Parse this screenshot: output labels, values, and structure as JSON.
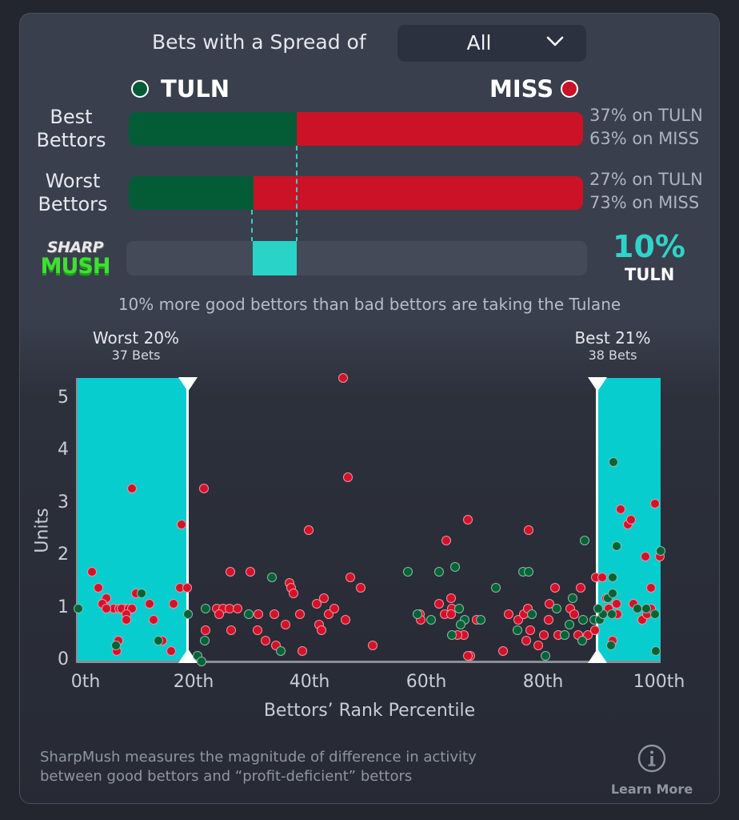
{
  "filter": {
    "label": "Bets with a Spread of",
    "selected": "All"
  },
  "teams": {
    "left": {
      "abbr": "TULN",
      "color": "#045c37"
    },
    "right": {
      "abbr": "MISS",
      "color": "#cc1226"
    }
  },
  "rows": [
    {
      "label_line1": "Best",
      "label_line2": "Bettors",
      "left_pct": 37,
      "right_pct": 63,
      "text1": "37% on TULN",
      "text2": "63% on MISS"
    },
    {
      "label_line1": "Worst",
      "label_line2": "Bettors",
      "left_pct": 27,
      "right_pct": 73,
      "text1": "27% on TULN",
      "text2": "73% on MISS"
    }
  ],
  "sharpmush": {
    "logo_top": "SHARP",
    "logo_bottom": "MUSH",
    "difference": "10%",
    "team": "TULN",
    "accent": "#29d3c8",
    "summary": "10% more good bettors than bad bettors are taking the Tulane"
  },
  "ranges": {
    "worst": {
      "title": "Worst 20%",
      "bets": "37 Bets"
    },
    "best": {
      "title": "Best 21%",
      "bets": "38 Bets"
    }
  },
  "footer": {
    "line1": "SharpMush measures the magnitude of difference in activity",
    "line2": "between good bettors and “profit-deficient” bettors",
    "learn_more": "Learn More"
  },
  "chart_data": {
    "type": "scatter",
    "title": "",
    "xlabel": "Bettors’ Rank Percentile",
    "ylabel": "Units",
    "xlim": [
      0,
      100
    ],
    "ylim": [
      0,
      5.4
    ],
    "x_ticks": [
      "0th",
      "20th",
      "40th",
      "60th",
      "80th",
      "100th"
    ],
    "y_ticks": [
      "0",
      "1",
      "2",
      "3",
      "4",
      "5"
    ],
    "grid": false,
    "legend": [
      {
        "name": "TULN",
        "color": "#056337"
      },
      {
        "name": "MISS",
        "color": "#d5112a"
      }
    ],
    "shaded_regions": [
      {
        "name": "Worst 20%",
        "x_from": 0,
        "x_to": 18.8,
        "color": "#08cdcf"
      },
      {
        "name": "Best 21%",
        "x_from": 89.3,
        "x_to": 100,
        "color": "#08cdcf"
      }
    ],
    "series": [
      {
        "name": "MISS",
        "color": "#d5112a",
        "points": [
          [
            9.3,
            3.3
          ],
          [
            21.7,
            3.3
          ],
          [
            17.9,
            2.6
          ],
          [
            2.5,
            1.7
          ],
          [
            3.6,
            1.4
          ],
          [
            17.5,
            1.4
          ],
          [
            18.8,
            1.4
          ],
          [
            5.0,
            1.2
          ],
          [
            10.0,
            1.3
          ],
          [
            4.2,
            1.1
          ],
          [
            6.2,
            1.0
          ],
          [
            4.9,
            1.0
          ],
          [
            8.2,
            1.0
          ],
          [
            7.1,
            1.0
          ],
          [
            7.6,
            1.0
          ],
          [
            8.8,
            1.0
          ],
          [
            9.3,
            1.0
          ],
          [
            8.4,
            0.9
          ],
          [
            8.4,
            0.8
          ],
          [
            12.4,
            1.1
          ],
          [
            16.5,
            1.1
          ],
          [
            13.1,
            0.8
          ],
          [
            7.0,
            0.4
          ],
          [
            14.5,
            0.4
          ],
          [
            6.7,
            0.2
          ],
          [
            16.0,
            0.2
          ],
          [
            21.9,
            0.6
          ],
          [
            23.9,
            1.0
          ],
          [
            24.9,
            1.0
          ],
          [
            26.0,
            1.0
          ],
          [
            27.5,
            1.0
          ],
          [
            24.3,
            0.9
          ],
          [
            26.2,
            1.7
          ],
          [
            29.6,
            1.7
          ],
          [
            26.3,
            0.6
          ],
          [
            31.0,
            0.9
          ],
          [
            30.9,
            0.6
          ],
          [
            33.8,
            0.9
          ],
          [
            32.2,
            0.4
          ],
          [
            34.0,
            0.3
          ],
          [
            39.6,
            2.5
          ],
          [
            35.6,
            0.7
          ],
          [
            36.4,
            1.5
          ],
          [
            36.6,
            1.4
          ],
          [
            37.0,
            1.3
          ],
          [
            38.2,
            0.9
          ],
          [
            41.0,
            1.1
          ],
          [
            42.3,
            1.2
          ],
          [
            41.4,
            0.7
          ],
          [
            41.8,
            0.6
          ],
          [
            43.1,
            0.9
          ],
          [
            38.6,
            0.2
          ],
          [
            44.0,
            1.0
          ],
          [
            45.5,
            5.4
          ],
          [
            46.3,
            3.5
          ],
          [
            46.8,
            1.6
          ],
          [
            48.5,
            1.4
          ],
          [
            45.9,
            0.8
          ],
          [
            50.6,
            0.3
          ],
          [
            58.7,
            0.9
          ],
          [
            58.8,
            0.8
          ],
          [
            62.0,
            1.1
          ],
          [
            63.0,
            0.9
          ],
          [
            63.3,
            2.3
          ],
          [
            64.1,
            1.2
          ],
          [
            64.2,
            1.0
          ],
          [
            64.0,
            0.9
          ],
          [
            66.2,
            0.5
          ],
          [
            65.2,
            0.5
          ],
          [
            66.9,
            2.7
          ],
          [
            67.3,
            0.1
          ],
          [
            68.4,
            0.8
          ],
          [
            67.0,
            0.1
          ],
          [
            73.0,
            0.2
          ],
          [
            74.0,
            0.9
          ],
          [
            75.6,
            0.8
          ],
          [
            76.6,
            0.9
          ],
          [
            77.3,
            2.5
          ],
          [
            77.2,
            1.0
          ],
          [
            76.9,
            0.4
          ],
          [
            77.6,
            0.6
          ],
          [
            79.0,
            0.3
          ],
          [
            80.0,
            0.5
          ],
          [
            80.8,
            0.8
          ],
          [
            81.0,
            1.1
          ],
          [
            81.9,
            1.4
          ],
          [
            82.5,
            0.5
          ],
          [
            84.5,
            1.0
          ],
          [
            85.2,
            0.9
          ],
          [
            86.3,
            1.4
          ],
          [
            85.9,
            0.5
          ],
          [
            87.5,
            0.5
          ],
          [
            88.9,
            1.6
          ],
          [
            90.0,
            1.6
          ],
          [
            90.7,
            1.2
          ],
          [
            88.8,
            0.6
          ],
          [
            91.8,
            0.4
          ],
          [
            91.1,
            1.0
          ],
          [
            92.4,
            1.1
          ],
          [
            92.6,
            0.9
          ],
          [
            93.2,
            2.9
          ],
          [
            94.4,
            2.6
          ],
          [
            94.9,
            2.7
          ],
          [
            95.4,
            1.1
          ],
          [
            96.8,
            0.8
          ],
          [
            97.4,
            2.0
          ],
          [
            97.7,
            0.9
          ],
          [
            98.3,
            1.4
          ],
          [
            98.3,
            1.0
          ],
          [
            99.0,
            3.0
          ],
          [
            99.8,
            2.0
          ]
        ]
      },
      {
        "name": "TULN",
        "color": "#056337",
        "points": [
          [
            0.2,
            1.0
          ],
          [
            11.0,
            1.3
          ],
          [
            6.6,
            0.3
          ],
          [
            13.9,
            0.4
          ],
          [
            18.9,
            0.9
          ],
          [
            20.6,
            0.1
          ],
          [
            21.3,
            0.0
          ],
          [
            21.9,
            1.0
          ],
          [
            21.8,
            0.4
          ],
          [
            29.3,
            0.9
          ],
          [
            33.3,
            1.6
          ],
          [
            34.8,
            0.2
          ],
          [
            58.3,
            0.9
          ],
          [
            60.6,
            0.8
          ],
          [
            56.6,
            1.7
          ],
          [
            62.0,
            1.7
          ],
          [
            64.7,
            1.8
          ],
          [
            65.4,
            1.0
          ],
          [
            66.4,
            0.8
          ],
          [
            65.7,
            0.7
          ],
          [
            64.2,
            0.5
          ],
          [
            69.2,
            0.8
          ],
          [
            71.7,
            1.4
          ],
          [
            75.5,
            0.6
          ],
          [
            76.4,
            1.7
          ],
          [
            77.4,
            1.7
          ],
          [
            77.9,
            0.9
          ],
          [
            80.3,
            0.1
          ],
          [
            82.1,
            1.0
          ],
          [
            83.5,
            0.5
          ],
          [
            84.3,
            0.7
          ],
          [
            84.9,
            1.2
          ],
          [
            87.0,
            2.3
          ],
          [
            86.7,
            0.8
          ],
          [
            86.5,
            0.4
          ],
          [
            88.6,
            0.8
          ],
          [
            89.6,
            0.8
          ],
          [
            90.1,
            0.9
          ],
          [
            90.9,
            1.2
          ],
          [
            91.6,
            0.9
          ],
          [
            91.8,
            1.3
          ],
          [
            91.8,
            1.6
          ],
          [
            92.5,
            2.2
          ],
          [
            91.9,
            3.8
          ],
          [
            89.3,
            1.0
          ],
          [
            91.5,
            0.3
          ],
          [
            96.0,
            1.0
          ],
          [
            97.5,
            1.0
          ],
          [
            99.0,
            0.9
          ],
          [
            99.2,
            0.2
          ],
          [
            100.0,
            2.1
          ]
        ]
      }
    ]
  }
}
